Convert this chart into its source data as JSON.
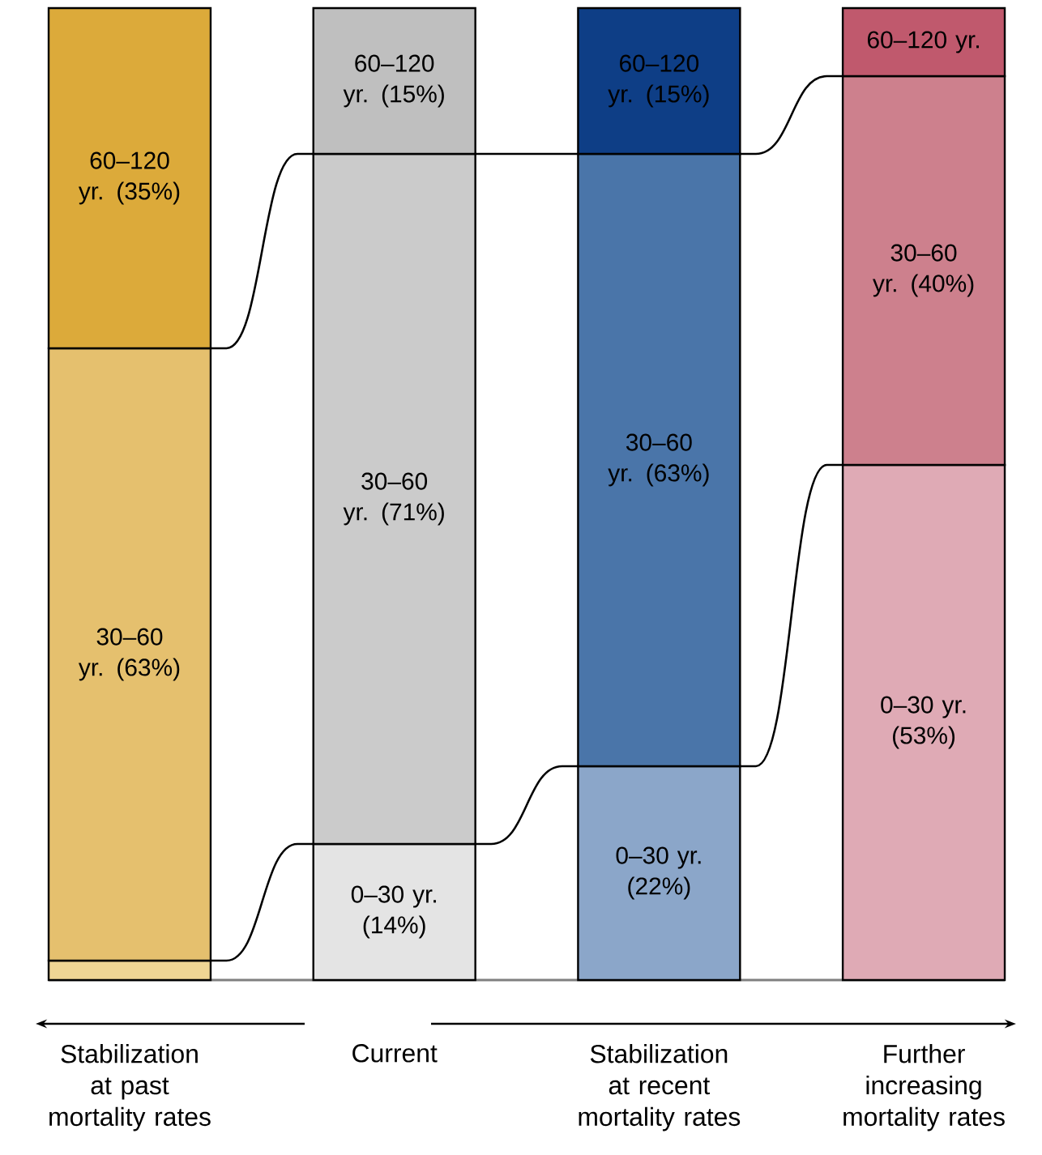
{
  "chart_data": {
    "type": "bar",
    "stacked": true,
    "categories": [
      "Stabilization at past mortality rates",
      "Current",
      "Stabilization at recent mortality rates",
      "Further increasing mortality rates"
    ],
    "ylim": [
      0,
      100
    ],
    "tick_labels": "x",
    "series": [
      {
        "values": [
          2,
          14,
          22,
          53
        ],
        "colors": [
          "#efd594",
          "#e4e4e4",
          "#8ba6c9",
          "#dfaab5"
        ],
        "value_labels": [
          null,
          "0–30 yr. (14%)",
          "0–30 yr. (22%)",
          "0–30 yr. (53%)"
        ]
      },
      {
        "values": [
          63,
          71,
          63,
          40
        ],
        "colors": [
          "#e5c06e",
          "#cbcbcb",
          "#4a75a9",
          "#cd808d"
        ],
        "value_labels": [
          "30–60 yr. (63%)",
          "30–60 yr. (71%)",
          "30–60 yr. (63%)",
          "30–60 yr. (40%)"
        ]
      },
      {
        "values": [
          35,
          15,
          15,
          7
        ],
        "colors": [
          "#dcaa3a",
          "#bfbfbf",
          "#0e3e86",
          "#c0596d"
        ],
        "value_labels": [
          "60–120 yr. (35%)",
          "60–120 yr. (15%)",
          "60–120 yr. (15%)",
          "60–120 yr."
        ]
      }
    ]
  }
}
